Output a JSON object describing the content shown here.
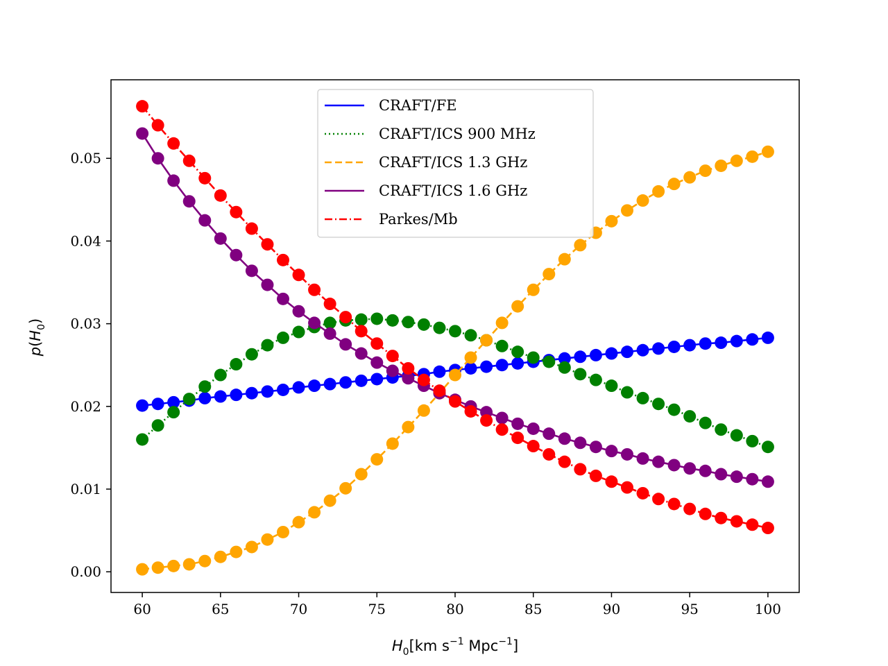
{
  "chart_data": {
    "type": "line",
    "title": "",
    "xlabel": "H0 [km s^-1 Mpc^-1]",
    "ylabel": "p(H0)",
    "xlim": [
      58,
      102
    ],
    "ylim": [
      -0.0025,
      0.0595
    ],
    "xticks": [
      60,
      65,
      70,
      75,
      80,
      85,
      90,
      95,
      100
    ],
    "xtick_labels": [
      "60",
      "65",
      "70",
      "75",
      "80",
      "85",
      "90",
      "95",
      "100"
    ],
    "yticks": [
      0.0,
      0.01,
      0.02,
      0.03,
      0.04,
      0.05
    ],
    "ytick_labels": [
      "0.00",
      "0.01",
      "0.02",
      "0.03",
      "0.04",
      "0.05"
    ],
    "legend_position": "upper-center",
    "x": [
      60,
      61,
      62,
      63,
      64,
      65,
      66,
      67,
      68,
      69,
      70,
      71,
      72,
      73,
      74,
      75,
      76,
      77,
      78,
      79,
      80,
      81,
      82,
      83,
      84,
      85,
      86,
      87,
      88,
      89,
      90,
      91,
      92,
      93,
      94,
      95,
      96,
      97,
      98,
      99,
      100
    ],
    "series": [
      {
        "name": "CRAFT/FE",
        "color": "#0000ff",
        "linestyle": "solid",
        "values": [
          0.0201,
          0.0203,
          0.0205,
          0.0207,
          0.021,
          0.0212,
          0.0214,
          0.0216,
          0.0218,
          0.022,
          0.0223,
          0.0225,
          0.0227,
          0.0229,
          0.0231,
          0.0233,
          0.0235,
          0.0237,
          0.0239,
          0.0242,
          0.0244,
          0.0246,
          0.0248,
          0.025,
          0.0252,
          0.0254,
          0.0256,
          0.0258,
          0.026,
          0.0262,
          0.0264,
          0.0266,
          0.0268,
          0.027,
          0.0272,
          0.0274,
          0.0276,
          0.0277,
          0.0279,
          0.0281,
          0.0283
        ]
      },
      {
        "name": "CRAFT/ICS 900 MHz",
        "color": "#008000",
        "linestyle": "dotted",
        "values": [
          0.016,
          0.0177,
          0.0193,
          0.0209,
          0.0224,
          0.0238,
          0.0251,
          0.0263,
          0.0274,
          0.0283,
          0.029,
          0.0296,
          0.0301,
          0.0304,
          0.0305,
          0.0306,
          0.0304,
          0.0302,
          0.0299,
          0.0295,
          0.0291,
          0.0286,
          0.028,
          0.0273,
          0.0266,
          0.0259,
          0.0254,
          0.0247,
          0.0239,
          0.0232,
          0.0225,
          0.0217,
          0.021,
          0.0203,
          0.0196,
          0.0188,
          0.018,
          0.0172,
          0.0165,
          0.0158,
          0.0151
        ]
      },
      {
        "name": "CRAFT/ICS 1.3 GHz",
        "color": "#ffa500",
        "linestyle": "dashed",
        "values": [
          0.0003,
          0.0005,
          0.0007,
          0.0009,
          0.0013,
          0.0018,
          0.0024,
          0.003,
          0.0039,
          0.0048,
          0.006,
          0.0072,
          0.0086,
          0.0101,
          0.0118,
          0.0136,
          0.0155,
          0.0175,
          0.0195,
          0.0216,
          0.0238,
          0.0259,
          0.028,
          0.0301,
          0.0321,
          0.0341,
          0.036,
          0.0378,
          0.0395,
          0.041,
          0.0424,
          0.0437,
          0.0449,
          0.046,
          0.0469,
          0.0477,
          0.0485,
          0.0491,
          0.0497,
          0.0502,
          0.0508
        ]
      },
      {
        "name": "CRAFT/ICS 1.6 GHz",
        "color": "#800080",
        "linestyle": "solid",
        "values": [
          0.053,
          0.05,
          0.0473,
          0.0448,
          0.0425,
          0.0403,
          0.0383,
          0.0364,
          0.0347,
          0.033,
          0.0315,
          0.0301,
          0.0288,
          0.0275,
          0.0264,
          0.0253,
          0.0243,
          0.0234,
          0.0225,
          0.0216,
          0.0208,
          0.02,
          0.0193,
          0.0186,
          0.0179,
          0.0173,
          0.0167,
          0.0161,
          0.0156,
          0.0151,
          0.0146,
          0.0142,
          0.0137,
          0.0133,
          0.0129,
          0.0125,
          0.0122,
          0.0118,
          0.0115,
          0.0112,
          0.0109
        ]
      },
      {
        "name": "Parkes/Mb",
        "color": "#ff0000",
        "linestyle": "dashdot",
        "values": [
          0.0563,
          0.054,
          0.0518,
          0.0497,
          0.0476,
          0.0455,
          0.0435,
          0.0415,
          0.0396,
          0.0377,
          0.0359,
          0.0341,
          0.0324,
          0.0308,
          0.0291,
          0.0276,
          0.0261,
          0.0246,
          0.0232,
          0.0219,
          0.0206,
          0.0194,
          0.0183,
          0.0172,
          0.0162,
          0.0152,
          0.0142,
          0.0133,
          0.0124,
          0.0116,
          0.0109,
          0.0102,
          0.0095,
          0.0088,
          0.0082,
          0.0076,
          0.007,
          0.0065,
          0.0061,
          0.0057,
          0.0053
        ]
      }
    ]
  }
}
